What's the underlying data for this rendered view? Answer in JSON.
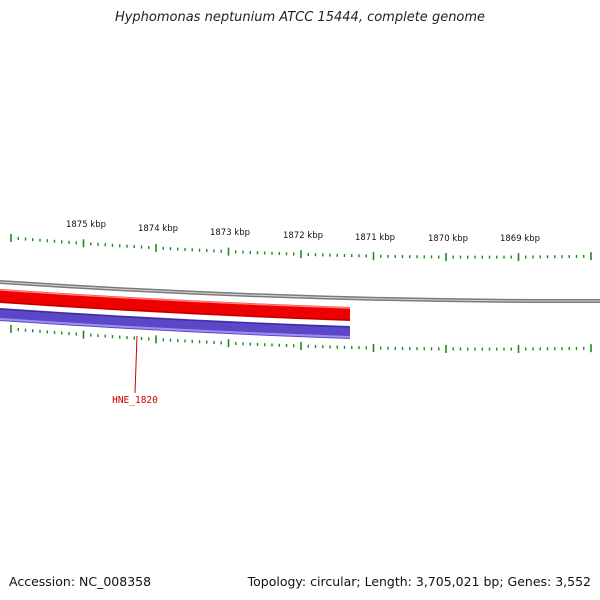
{
  "title": "Hyphomonas neptunium ATCC 15444, complete genome",
  "footer": {
    "accession": "Accession: NC_008358",
    "summary": "Topology: circular; Length: 3,705,021 bp; Genes: 3,552"
  },
  "ruler": {
    "labels": [
      "1875 kbp",
      "1874 kbp",
      "1873 kbp",
      "1872 kbp",
      "1871 kbp",
      "1870 kbp",
      "1869 kbp"
    ]
  },
  "features": [
    {
      "label": "HNE_1820",
      "strand": "reverse"
    }
  ],
  "colors": {
    "tick": "#1a8a1a",
    "backbone": "#808080",
    "forward_cds": "#ee0000",
    "reverse_cds": "#5a48c8",
    "feature_label": "#cc0000"
  }
}
